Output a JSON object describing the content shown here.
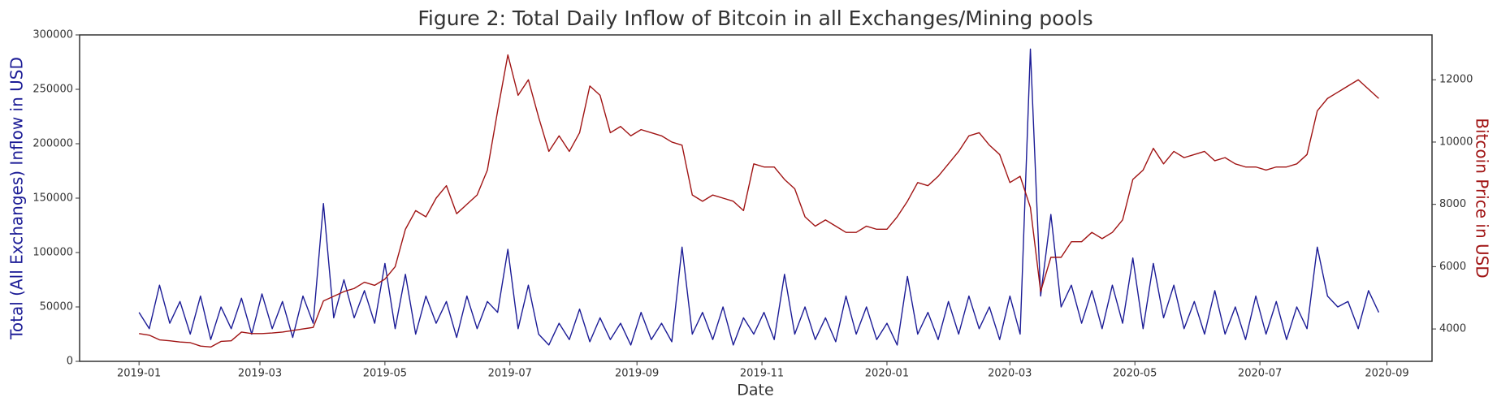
{
  "chart_data": {
    "type": "line",
    "title": "Figure 2: Total Daily Inflow of Bitcoin in all Exchanges/Mining pools",
    "x_label": "Date",
    "y_label": "Total (All Exchanges) Inflow in USD",
    "y2_label": "Bitcoin Price in USD",
    "x": [
      0,
      5,
      10,
      15,
      20,
      25,
      30,
      35,
      40,
      45,
      50,
      55,
      60,
      65,
      70,
      75,
      80,
      85,
      90,
      95,
      100,
      105,
      110,
      115,
      120,
      125,
      130,
      135,
      140,
      145,
      150,
      155,
      160,
      165,
      170,
      175,
      180,
      185,
      190,
      195,
      200,
      205,
      210,
      215,
      220,
      225,
      230,
      235,
      240,
      245,
      250,
      255,
      260,
      265,
      270,
      275,
      280,
      285,
      290,
      295,
      300,
      305,
      310,
      315,
      320,
      325,
      330,
      335,
      340,
      345,
      350,
      355,
      360,
      365,
      370,
      375,
      380,
      385,
      390,
      395,
      400,
      405,
      410,
      415,
      420,
      425,
      430,
      435,
      440,
      445,
      450,
      455,
      460,
      465,
      470,
      475,
      480,
      485,
      490,
      495,
      500,
      505,
      510,
      515,
      520,
      525,
      530,
      535,
      540,
      545,
      550,
      555,
      560,
      565,
      570,
      575,
      580,
      585,
      590,
      595,
      600,
      605
    ],
    "xlim": [
      -29,
      631
    ],
    "xticks": [
      {
        "value": 0,
        "label": "2019-01"
      },
      {
        "value": 59,
        "label": "2019-03"
      },
      {
        "value": 120,
        "label": "2019-05"
      },
      {
        "value": 181,
        "label": "2019-07"
      },
      {
        "value": 243,
        "label": "2019-09"
      },
      {
        "value": 304,
        "label": "2019-11"
      },
      {
        "value": 365,
        "label": "2020-01"
      },
      {
        "value": 425,
        "label": "2020-03"
      },
      {
        "value": 486,
        "label": "2020-05"
      },
      {
        "value": 547,
        "label": "2020-07"
      },
      {
        "value": 609,
        "label": "2020-09"
      }
    ],
    "ylim": [
      0,
      300000
    ],
    "yticks": [
      0,
      50000,
      100000,
      150000,
      200000,
      250000,
      300000
    ],
    "y2lim": [
      2960,
      13440
    ],
    "y2ticks": [
      4000,
      6000,
      8000,
      10000,
      12000
    ],
    "series": [
      {
        "color": "#1c1c96",
        "axis": "y",
        "values": [
          45000,
          30000,
          70000,
          35000,
          55000,
          25000,
          60000,
          20000,
          50000,
          30000,
          58000,
          25000,
          62000,
          30000,
          55000,
          22000,
          60000,
          35000,
          145000,
          40000,
          75000,
          40000,
          65000,
          35000,
          90000,
          30000,
          80000,
          25000,
          60000,
          35000,
          55000,
          22000,
          60000,
          30000,
          55000,
          45000,
          103000,
          30000,
          70000,
          25000,
          15000,
          35000,
          20000,
          48000,
          18000,
          40000,
          20000,
          35000,
          15000,
          45000,
          20000,
          35000,
          18000,
          105000,
          25000,
          45000,
          20000,
          50000,
          15000,
          40000,
          25000,
          45000,
          20000,
          80000,
          25000,
          50000,
          20000,
          40000,
          18000,
          60000,
          25000,
          50000,
          20000,
          35000,
          15000,
          78000,
          25000,
          45000,
          20000,
          55000,
          25000,
          60000,
          30000,
          50000,
          20000,
          60000,
          25000,
          287000,
          60000,
          135000,
          50000,
          70000,
          35000,
          65000,
          30000,
          70000,
          35000,
          95000,
          30000,
          90000,
          40000,
          70000,
          30000,
          55000,
          25000,
          65000,
          25000,
          50000,
          20000,
          60000,
          25000,
          55000,
          20000,
          50000,
          30000,
          105000,
          60000,
          50000,
          55000,
          30000,
          65000,
          45000
        ]
      },
      {
        "color": "#a01414",
        "axis": "y2",
        "values": [
          3850,
          3800,
          3650,
          3620,
          3580,
          3560,
          3450,
          3420,
          3600,
          3620,
          3900,
          3850,
          3850,
          3870,
          3900,
          3950,
          4000,
          4050,
          4900,
          5050,
          5200,
          5300,
          5500,
          5400,
          5600,
          6000,
          7200,
          7800,
          7600,
          8200,
          8600,
          7700,
          8000,
          8300,
          9100,
          11000,
          12800,
          11500,
          12000,
          10800,
          9700,
          10200,
          9700,
          10300,
          11800,
          11500,
          10300,
          10500,
          10200,
          10400,
          10300,
          10200,
          10000,
          9900,
          8300,
          8100,
          8300,
          8200,
          8100,
          7800,
          9300,
          9200,
          9200,
          8800,
          8500,
          7600,
          7300,
          7500,
          7300,
          7100,
          7100,
          7300,
          7200,
          7200,
          7600,
          8100,
          8700,
          8600,
          8900,
          9300,
          9700,
          10200,
          10300,
          9900,
          9600,
          8700,
          8900,
          7900,
          5200,
          6300,
          6300,
          6800,
          6800,
          7100,
          6900,
          7100,
          7500,
          8800,
          9100,
          9800,
          9300,
          9700,
          9500,
          9600,
          9700,
          9400,
          9500,
          9300,
          9200,
          9200,
          9100,
          9200,
          9200,
          9300,
          9600,
          11000,
          11400,
          11600,
          11800,
          12000,
          11700,
          11400
        ]
      }
    ]
  }
}
